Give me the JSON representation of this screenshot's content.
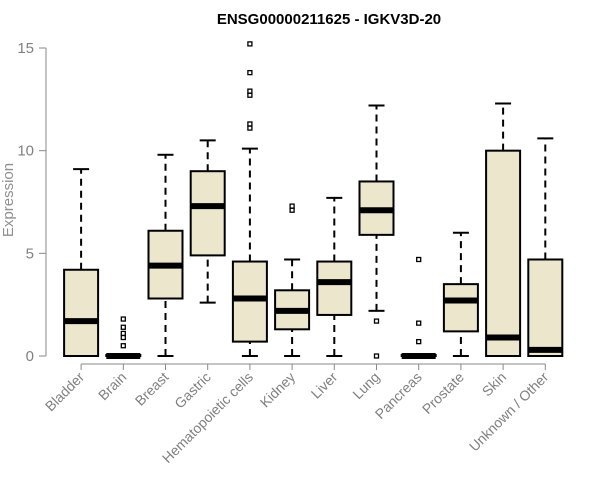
{
  "chart_data": {
    "type": "boxplot",
    "title": "ENSG00000211625 - IGKV3D-20",
    "xlabel": "",
    "ylabel": "Expression",
    "ylim": [
      0,
      15
    ],
    "yticks": [
      0,
      5,
      10,
      15
    ],
    "box_fill": "#ece6cd",
    "categories": [
      "Bladder",
      "Brain",
      "Breast",
      "Gastric",
      "Hematopoietic cells",
      "Kidney",
      "Liver",
      "Lung",
      "Pancreas",
      "Prostate",
      "Skin",
      "Unknown / Other"
    ],
    "series": [
      {
        "name": "Bladder",
        "min": 0,
        "q1": 0,
        "median": 1.7,
        "q3": 4.2,
        "max": 9.1,
        "outliers": []
      },
      {
        "name": "Brain",
        "min": 0,
        "q1": 0,
        "median": 0,
        "q3": 0.05,
        "max": 0.1,
        "outliers": [
          0.5,
          0.9,
          1.1,
          1.4,
          1.8
        ]
      },
      {
        "name": "Breast",
        "min": 0,
        "q1": 2.8,
        "median": 4.4,
        "q3": 6.1,
        "max": 9.8,
        "outliers": []
      },
      {
        "name": "Gastric",
        "min": 2.6,
        "q1": 4.9,
        "median": 7.3,
        "q3": 9.0,
        "max": 10.5,
        "outliers": []
      },
      {
        "name": "Hematopoietic cells",
        "min": 0,
        "q1": 0.7,
        "median": 2.8,
        "q3": 4.6,
        "max": 10.1,
        "outliers": [
          11.1,
          11.3,
          12.7,
          12.9,
          13.8,
          15.2
        ]
      },
      {
        "name": "Kidney",
        "min": 0,
        "q1": 1.3,
        "median": 2.2,
        "q3": 3.2,
        "max": 4.7,
        "outliers": [
          7.1,
          7.3
        ]
      },
      {
        "name": "Liver",
        "min": 0,
        "q1": 2.0,
        "median": 3.6,
        "q3": 4.6,
        "max": 7.7,
        "outliers": []
      },
      {
        "name": "Lung",
        "min": 2.2,
        "q1": 5.9,
        "median": 7.1,
        "q3": 8.5,
        "max": 12.2,
        "outliers": [
          1.7,
          0
        ]
      },
      {
        "name": "Pancreas",
        "min": 0,
        "q1": 0,
        "median": 0,
        "q3": 0.05,
        "max": 0.1,
        "outliers": [
          0.7,
          1.6,
          4.7
        ]
      },
      {
        "name": "Prostate",
        "min": 0,
        "q1": 1.2,
        "median": 2.7,
        "q3": 3.5,
        "max": 6.0,
        "outliers": []
      },
      {
        "name": "Skin",
        "min": 0,
        "q1": 0,
        "median": 0.9,
        "q3": 10.0,
        "max": 12.3,
        "outliers": []
      },
      {
        "name": "Unknown / Other",
        "min": 0,
        "q1": 0,
        "median": 0.3,
        "q3": 4.7,
        "max": 10.6,
        "outliers": []
      }
    ]
  }
}
